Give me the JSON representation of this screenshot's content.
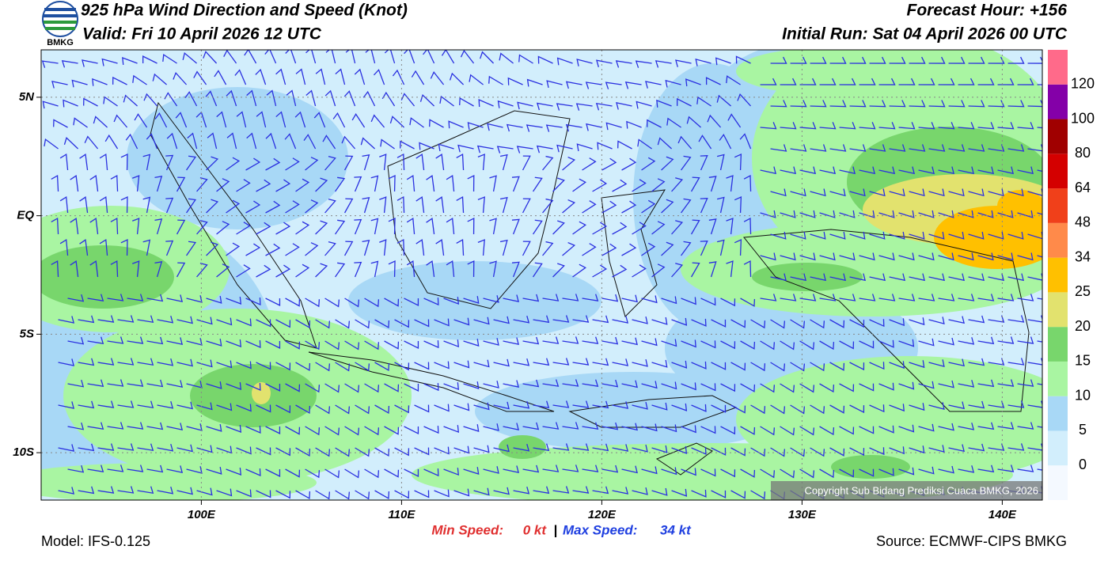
{
  "header": {
    "logo_text": "BMKG",
    "title": "925 hPa Wind Direction and Speed (Knot)",
    "valid": "Valid: Fri 10 April 2026 12 UTC",
    "forecast_hour": "Forecast Hour: +156",
    "initial_run": "Initial Run: Sat 04 April 2026 00 UTC"
  },
  "map": {
    "lonlim": [
      92,
      142
    ],
    "latlim": [
      -12,
      7
    ],
    "lonticks": [
      {
        "value": 100,
        "label": "100E"
      },
      {
        "value": 110,
        "label": "110E"
      },
      {
        "value": 120,
        "label": "120E"
      },
      {
        "value": 130,
        "label": "130E"
      },
      {
        "value": 140,
        "label": "140E"
      }
    ],
    "latticks": [
      {
        "value": 5,
        "label": "5N"
      },
      {
        "value": 0,
        "label": "EQ"
      },
      {
        "value": -5,
        "label": "5S"
      },
      {
        "value": -10,
        "label": "10S"
      }
    ],
    "copyright": "Copyright Sub Bidang Prediksi Cuaca BMKG, 2026"
  },
  "colorbar": {
    "colors": [
      "#f4f9ff",
      "#d2eefc",
      "#a8d8f6",
      "#a9f5a2",
      "#78d66c",
      "#e2e26e",
      "#ffc000",
      "#ff8a4a",
      "#f0401a",
      "#d40000",
      "#a00000",
      "#8400a8",
      "#ff6a8a"
    ],
    "labels": [
      0,
      5,
      10,
      15,
      20,
      25,
      34,
      48,
      64,
      80,
      100,
      120
    ]
  },
  "footer": {
    "model": "Model: IFS-0.125",
    "min_label": "Min Speed:",
    "min_value": "0 kt",
    "separator": "|",
    "max_label": "Max Speed:",
    "max_value": "34 kt",
    "source": "Source: ECMWF-CIPS BMKG"
  }
}
